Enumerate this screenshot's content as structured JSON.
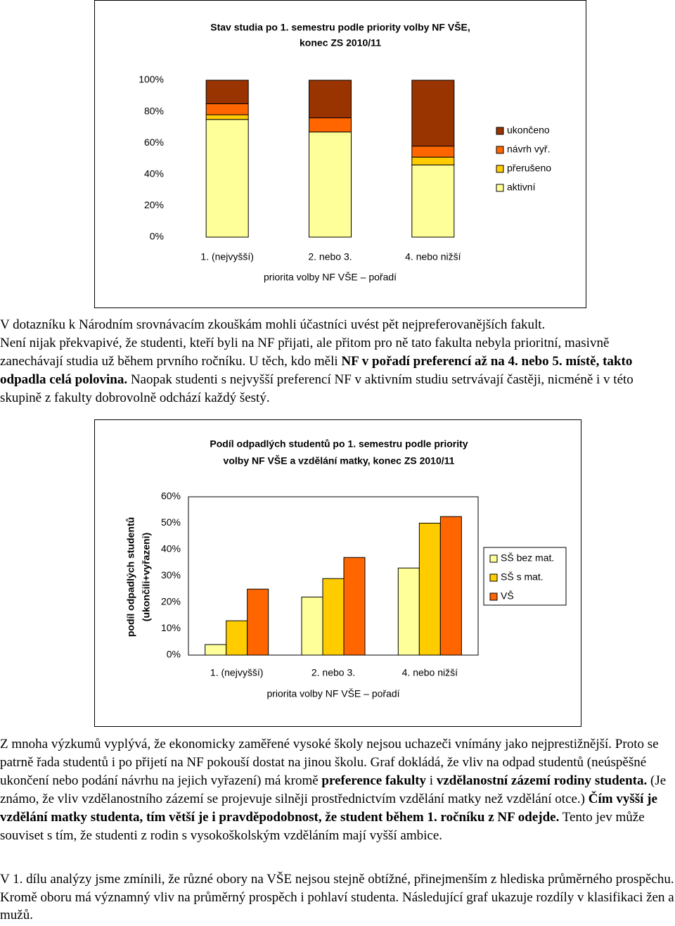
{
  "chart_data": [
    {
      "type": "bar",
      "stacked": true,
      "title": [
        "Stav studia po 1. semestru podle priority volby NF VŠE,",
        "konec ZS 2010/11"
      ],
      "xlabel": "priorita volby NF VŠE – pořadí",
      "categories": [
        "1. (nejvyšší)",
        "2. nebo 3.",
        "4. nebo nižší"
      ],
      "series": [
        {
          "name": "ukončeno",
          "color": "#993300",
          "values": [
            15,
            24,
            42
          ]
        },
        {
          "name": "návrh vyř.",
          "color": "#ff6600",
          "values": [
            7,
            9,
            7
          ]
        },
        {
          "name": "přerušeno",
          "color": "#ffcc00",
          "values": [
            3,
            0,
            5
          ]
        },
        {
          "name": "aktivní",
          "color": "#ffff99",
          "values": [
            75,
            67,
            46
          ]
        }
      ],
      "ylim": [
        0,
        100
      ],
      "yticks": [
        {
          "value": 0,
          "label": "0%"
        },
        {
          "value": 20,
          "label": "20%"
        },
        {
          "value": 40,
          "label": "40%"
        },
        {
          "value": 60,
          "label": "60%"
        },
        {
          "value": 80,
          "label": "80%"
        },
        {
          "value": 100,
          "label": "100%"
        }
      ],
      "grid": false,
      "legend": "right"
    },
    {
      "type": "bar",
      "stacked": false,
      "title": [
        "Podíl odpadlých studentů po 1. semestru podle priority",
        "volby NF VŠE a vzdělání matky, konec ZS 2010/11"
      ],
      "ylabel": [
        "podíl odpadlých studentů",
        "(ukončili+vyřazeni)"
      ],
      "xlabel": "priorita volby NF VŠE – pořadí",
      "categories": [
        "1. (nejvyšší)",
        "2. nebo 3.",
        "4. nebo nižší"
      ],
      "series": [
        {
          "name": "SŠ bez mat.",
          "color": "#ffff99",
          "values": [
            4,
            22,
            33
          ]
        },
        {
          "name": "SŠ s mat.",
          "color": "#ffcc00",
          "values": [
            13,
            29,
            50
          ]
        },
        {
          "name": "VŠ",
          "color": "#ff6600",
          "values": [
            25,
            37,
            52.5
          ]
        }
      ],
      "ylim": [
        0,
        60
      ],
      "yticks": [
        {
          "value": 0,
          "label": "0%"
        },
        {
          "value": 10,
          "label": "10%"
        },
        {
          "value": 20,
          "label": "20%"
        },
        {
          "value": 30,
          "label": "30%"
        },
        {
          "value": 40,
          "label": "40%"
        },
        {
          "value": 50,
          "label": "50%"
        },
        {
          "value": 60,
          "label": "60%"
        }
      ],
      "grid": false,
      "legend": "right"
    }
  ],
  "paragraphs": [
    [
      {
        "text": "V dotazníku k Národním srovnávacím zkouškám mohli účastníci uvést pět nejpreferovanějších fakult.",
        "bold": false
      }
    ],
    [
      {
        "text": "Není nijak překvapivé, že studenti, kteří byli na NF přijati, ale přitom pro ně tato fakulta nebyla prioritní, masivně zanechávají studia už během prvního ročníku. U těch, kdo měli ",
        "bold": false
      },
      {
        "text": "NF v pořadí preferencí až na 4. nebo 5. místě, takto odpadla celá polovina.",
        "bold": true
      },
      {
        "text": " Naopak studenti s nejvyšší preferencí NF v aktivním studiu setrvávají častěji, nicméně i v této skupině z fakulty dobrovolně odchází každý šestý.",
        "bold": false
      }
    ],
    [
      {
        "text": "Z mnoha výzkumů vyplývá, že ekonomicky zaměřené vysoké školy nejsou uchazeči vnímány jako nejprestižnější. Proto se patrně řada studentů i po přijetí na NF pokouší dostat na jinou školu. Graf dokládá, že vliv na odpad studentů (neúspěšné ukončení nebo podání návrhu na jejich vyřazení) má kromě ",
        "bold": false
      },
      {
        "text": "preference fakulty",
        "bold": true
      },
      {
        "text": " i ",
        "bold": false
      },
      {
        "text": "vzdělanostní zázemí rodiny studenta.",
        "bold": true
      },
      {
        "text": " (Je známo, že vliv vzdělanostního zázemí se projevuje silněji prostřednictvím vzdělání matky než vzdělání otce.) ",
        "bold": false
      },
      {
        "text": "Čím vyšší je vzdělání matky studenta, tím větší je i pravděpodobnost, že student během 1. ročníku z NF odejde.",
        "bold": true
      },
      {
        "text": " Tento jev může souviset s tím, že studenti z rodin s vysokoškolským vzděláním mají vyšší ambice.",
        "bold": false
      }
    ],
    [
      {
        "text": "V 1. dílu analýzy jsme zmínili, že různé obory na VŠE nejsou stejně obtížné, přinejmenším z hlediska průměrného prospěchu. Kromě oboru má významný vliv na průměrný prospěch i pohlaví studenta. Následující graf ukazuje rozdíly v klasifikaci žen a mužů.",
        "bold": false
      }
    ]
  ]
}
